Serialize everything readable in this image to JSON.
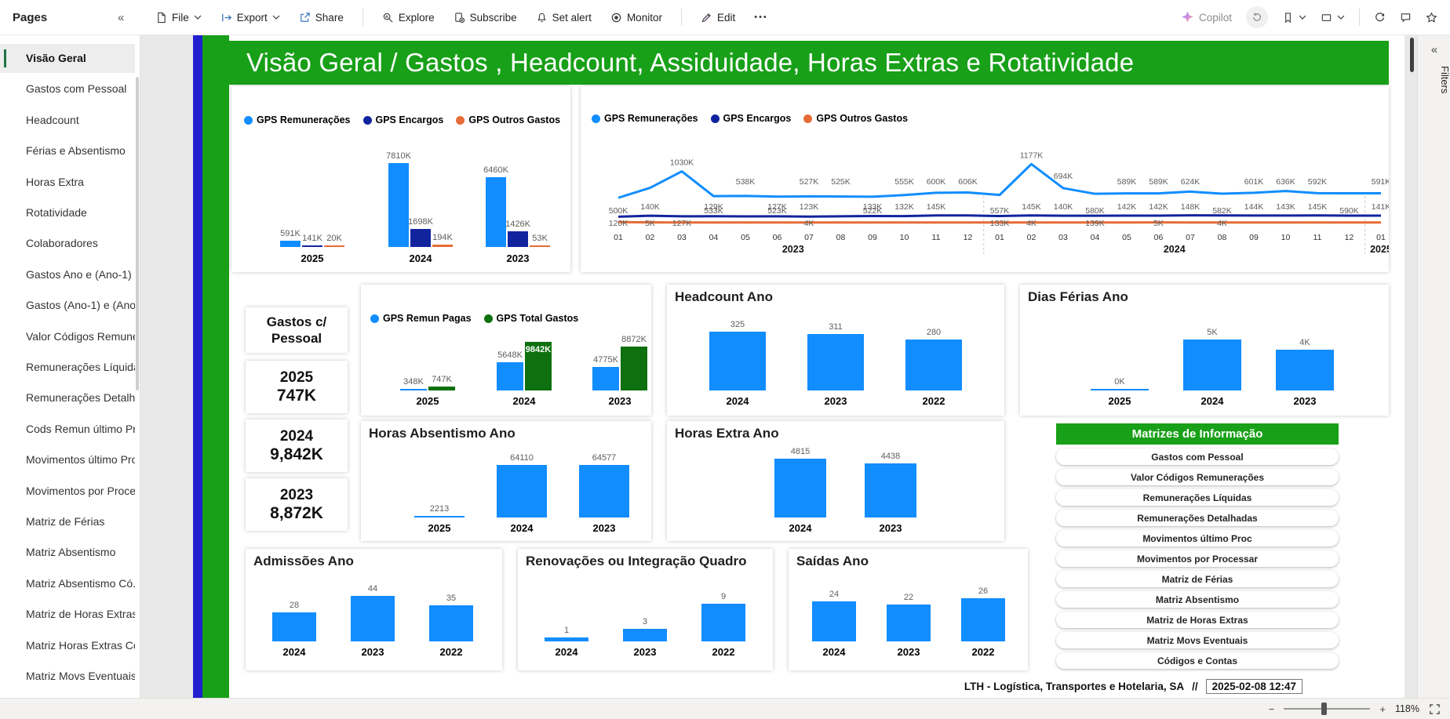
{
  "toolbar": {
    "pages_label": "Pages",
    "file": "File",
    "export": "Export",
    "share": "Share",
    "explore": "Explore",
    "subscribe": "Subscribe",
    "set_alert": "Set alert",
    "monitor": "Monitor",
    "edit": "Edit",
    "more": "•••",
    "copilot": "Copilot"
  },
  "sidebar": {
    "selected": "Visão Geral",
    "items": [
      "Visão Geral",
      "Gastos com Pessoal",
      "Headcount",
      "Férias e Absentismo",
      "Horas Extra",
      "Rotatividade",
      "Colaboradores",
      "Gastos Ano e (Ano-1)",
      "Gastos (Ano-1) e (Ano...",
      "Valor Códigos Remune...",
      "Remunerações Líquidas",
      "Remunerações Detalha...",
      "Cods Remun último Pr...",
      "Movimentos último Proc",
      "Movimentos por Proce...",
      "Matriz de Férias",
      "Matriz Absentismo",
      "Matriz Absentismo Có...",
      "Matriz de Horas Extras",
      "Matriz Horas Extras Có...",
      "Matriz Movs Eventuais"
    ]
  },
  "banner": {
    "title": "Visão Geral / Gastos , Headcount, Assiduidade, Horas Extras e Rotatividade"
  },
  "gastos_cards": {
    "title_line1": "Gastos c/",
    "title_line2": "Pessoal",
    "entries": [
      {
        "year": "2025",
        "value": "747K"
      },
      {
        "year": "2024",
        "value": "9,842K"
      },
      {
        "year": "2023",
        "value": "8,872K"
      }
    ]
  },
  "matrizes": {
    "header": "Matrizes de Informação",
    "items": [
      "Gastos com Pessoal",
      "Valor Códigos Remunerações",
      "Remunerações Líquidas",
      "Remunerações Detalhadas",
      "Movimentos último Proc",
      "Movimentos por Processar",
      "Matriz de Férias",
      "Matriz Absentismo",
      "Matriz de Horas Extras",
      "Matriz Movs Eventuais",
      "Códigos e Contas"
    ]
  },
  "footer": {
    "company": "LTH - Logística, Transportes e Hotelaria, SA",
    "separator": "//",
    "timestamp": "2025-02-08 12:47"
  },
  "filters_panel": {
    "label": "Filters"
  },
  "status_bar": {
    "zoom_out": "−",
    "zoom_in": "+",
    "zoom_level": "118%"
  },
  "colors": {
    "green": "#18a018",
    "stripe_blue": "#2020ce",
    "bar_blue": "#118DFF",
    "bar_navy": "#12239E",
    "bar_orange": "#E66C37",
    "bar_green_dark": "#0E700E",
    "selected_page_accent": "#217346"
  },
  "chart_data": [
    {
      "id": "gastos-ano",
      "type": "bar",
      "categories": [
        "2025",
        "2024",
        "2023"
      ],
      "unit": "K",
      "series": [
        {
          "name": "GPS Remunerações",
          "color": "#118DFF",
          "values": [
            591,
            7810,
            6460
          ]
        },
        {
          "name": "GPS Encargos",
          "color": "#12239E",
          "values": [
            141,
            1698,
            1426
          ]
        },
        {
          "name": "GPS Outros Gastos",
          "color": "#E66C37",
          "values": [
            20,
            194,
            53
          ]
        }
      ]
    },
    {
      "id": "gastos-mensal",
      "type": "line",
      "x": [
        "01",
        "02",
        "03",
        "04",
        "05",
        "06",
        "07",
        "08",
        "09",
        "10",
        "11",
        "12",
        "01",
        "02",
        "03",
        "04",
        "05",
        "06",
        "07",
        "08",
        "09",
        "10",
        "11",
        "12",
        "01"
      ],
      "year_groups": [
        {
          "label": "2023",
          "from": 0,
          "to": 11
        },
        {
          "label": "2024",
          "from": 12,
          "to": 23
        },
        {
          "label": "2025",
          "from": 24,
          "to": 24
        }
      ],
      "unit": "K",
      "series": [
        {
          "name": "GPS Remunerações",
          "color": "#118DFF",
          "values": [
            500,
            700,
            1030,
            533,
            538,
            523,
            527,
            525,
            522,
            555,
            600,
            606,
            557,
            1177,
            694,
            580,
            589,
            589,
            624,
            582,
            601,
            636,
            592,
            590,
            591
          ],
          "label_pos": [
            "low",
            null,
            "peak",
            "low",
            "high",
            "low",
            "high",
            "high",
            "low",
            "high",
            "high",
            "high",
            "low",
            "peak",
            "mid",
            "low",
            "high",
            "high",
            "high",
            "low",
            "high",
            "high",
            "high",
            "low",
            "high"
          ]
        },
        {
          "name": "GPS Encargos",
          "color": "#12239E",
          "values": [
            120,
            140,
            127,
            129,
            126,
            127,
            123,
            128,
            133,
            132,
            145,
            146,
            133,
            145,
            140,
            139,
            142,
            142,
            148,
            146,
            144,
            143,
            145,
            142,
            141
          ],
          "label_pos": [
            "low",
            "main",
            "low",
            "main",
            null,
            "main",
            "main",
            null,
            "main",
            "main",
            "main",
            null,
            "low",
            "main",
            "main",
            "low",
            "main",
            "main",
            "main",
            null,
            "main",
            "main",
            "main",
            null,
            "main"
          ]
        },
        {
          "name": "GPS Outros Gastos",
          "color": "#E66C37",
          "values": [
            12,
            5,
            4,
            4,
            4,
            4,
            4,
            4,
            4,
            4,
            4,
            4,
            4,
            4,
            4,
            4,
            4,
            5,
            4,
            4,
            4,
            4,
            4,
            4,
            4
          ],
          "label_pos": [
            null,
            "main",
            null,
            null,
            null,
            null,
            "main",
            null,
            null,
            null,
            null,
            null,
            null,
            "main",
            null,
            null,
            null,
            "main",
            null,
            "main",
            null,
            null,
            null,
            null,
            null
          ]
        }
      ]
    },
    {
      "id": "remun-pagas",
      "type": "bar",
      "categories": [
        "2025",
        "2024",
        "2023"
      ],
      "unit": "K",
      "inside_labels": [
        [
          1,
          1
        ]
      ],
      "series": [
        {
          "name": "GPS Remun Pagas",
          "color": "#118DFF",
          "values": [
            348,
            5648,
            4775
          ]
        },
        {
          "name": "GPS Total Gastos",
          "color": "#0E700E",
          "values": [
            747,
            9842,
            8872
          ]
        }
      ]
    },
    {
      "id": "headcount",
      "type": "bar",
      "title": "Headcount Ano",
      "categories": [
        "2024",
        "2023",
        "2022"
      ],
      "series": [
        {
          "name": "Headcount",
          "color": "#118DFF",
          "values": [
            325,
            311,
            280
          ]
        }
      ]
    },
    {
      "id": "dias-ferias",
      "type": "bar",
      "title": "Dias Férias Ano",
      "categories": [
        "2025",
        "2024",
        "2023"
      ],
      "unit": "K",
      "series": [
        {
          "name": "Dias Férias",
          "color": "#118DFF",
          "values": [
            0,
            5,
            4
          ]
        }
      ]
    },
    {
      "id": "horas-absentismo",
      "type": "bar",
      "title": "Horas Absentismo Ano",
      "categories": [
        "2025",
        "2024",
        "2023"
      ],
      "series": [
        {
          "name": "Horas Absentismo",
          "color": "#118DFF",
          "values": [
            2213,
            64110,
            64577
          ]
        }
      ]
    },
    {
      "id": "horas-extra",
      "type": "bar",
      "title": "Horas Extra Ano",
      "categories": [
        "2024",
        "2023"
      ],
      "series": [
        {
          "name": "Horas Extra",
          "color": "#118DFF",
          "values": [
            4815,
            4438
          ]
        }
      ]
    },
    {
      "id": "admissoes",
      "type": "bar",
      "title": "Admissões Ano",
      "categories": [
        "2024",
        "2023",
        "2022"
      ],
      "series": [
        {
          "name": "Admissões",
          "color": "#118DFF",
          "values": [
            28,
            44,
            35
          ]
        }
      ]
    },
    {
      "id": "renovacoes",
      "type": "bar",
      "title": "Renovações ou Integração Quadro",
      "categories": [
        "2024",
        "2023",
        "2022"
      ],
      "series": [
        {
          "name": "Renovações",
          "color": "#118DFF",
          "values": [
            1,
            3,
            9
          ]
        }
      ]
    },
    {
      "id": "saidas",
      "type": "bar",
      "title": "Saídas Ano",
      "categories": [
        "2024",
        "2023",
        "2022"
      ],
      "series": [
        {
          "name": "Saídas",
          "color": "#118DFF",
          "values": [
            24,
            22,
            26
          ]
        }
      ]
    }
  ]
}
